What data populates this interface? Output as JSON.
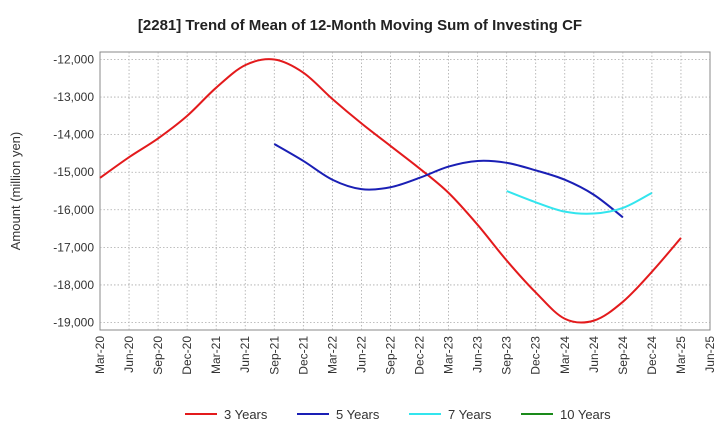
{
  "chart_data": {
    "type": "line",
    "title": "[2281]  Trend of Mean of 12-Month Moving Sum of Investing CF",
    "xlabel": "",
    "ylabel": "Amount (million yen)",
    "ylim": [
      -19200,
      -11800
    ],
    "yticks": [
      -12000,
      -13000,
      -14000,
      -15000,
      -16000,
      -17000,
      -18000,
      -19000
    ],
    "ytick_labels": [
      "-12,000",
      "-13,000",
      "-14,000",
      "-15,000",
      "-16,000",
      "-17,000",
      "-18,000",
      "-19,000"
    ],
    "x_tick_labels": [
      "Mar-20",
      "Jun-20",
      "Sep-20",
      "Dec-20",
      "Mar-21",
      "Jun-21",
      "Sep-21",
      "Dec-21",
      "Mar-22",
      "Jun-22",
      "Sep-22",
      "Dec-22",
      "Mar-23",
      "Jun-23",
      "Sep-23",
      "Dec-23",
      "Mar-24",
      "Jun-24",
      "Sep-24",
      "Dec-24",
      "Mar-25",
      "Jun-25"
    ],
    "grid": true,
    "legend_position": "bottom",
    "series": [
      {
        "name": "3 Years",
        "color": "#e31a1c",
        "x_start_index": 0,
        "values": [
          -15150,
          -14600,
          -14100,
          -13500,
          -12750,
          -12150,
          -12000,
          -12350,
          -13050,
          -13700,
          -14300,
          -14900,
          -15550,
          -16400,
          -17350,
          -18200,
          -18900,
          -18950,
          -18450,
          -17650,
          -16750
        ]
      },
      {
        "name": "5 Years",
        "color": "#1a1fb5",
        "x_start_index": 6,
        "values": [
          -14250,
          -14700,
          -15200,
          -15450,
          -15400,
          -15150,
          -14850,
          -14700,
          -14750,
          -14950,
          -15200,
          -15600,
          -16200
        ]
      },
      {
        "name": "7 Years",
        "color": "#33e5ee",
        "x_start_index": 14,
        "values": [
          -15500,
          -15800,
          -16050,
          -16100,
          -15950,
          -15550
        ]
      },
      {
        "name": "10 Years",
        "color": "#1a8a1a",
        "x_start_index": 0,
        "values": []
      }
    ]
  }
}
